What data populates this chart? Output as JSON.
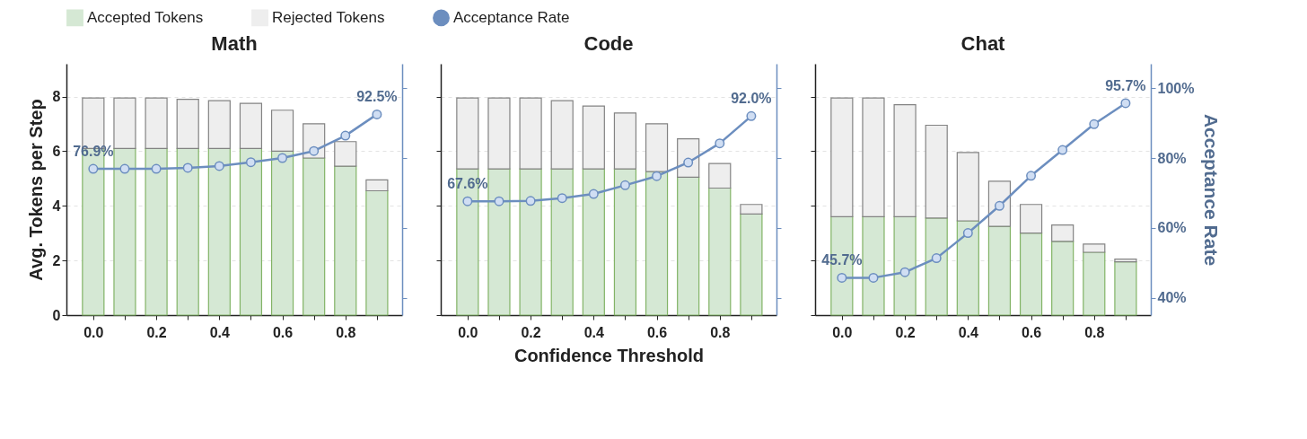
{
  "chart_data": [
    {
      "type": "bar",
      "title": "Math",
      "ylabel": "Avg. Tokens per Step",
      "stacked": true,
      "legend": "top",
      "grid": "y",
      "marker": "circle",
      "line_style": "solid",
      "x": [
        0.0,
        0.1,
        0.2,
        0.3,
        0.4,
        0.5,
        0.6,
        0.7,
        0.8,
        0.9
      ],
      "xlim": [
        -0.085,
        0.98
      ],
      "xticks": [
        {
          "value": 0,
          "label": "0.0"
        },
        {
          "value": 0.1,
          "label": null
        },
        {
          "value": 0.2,
          "label": "0.2"
        },
        {
          "value": 0.3,
          "label": null
        },
        {
          "value": 0.4,
          "label": "0.4"
        },
        {
          "value": 0.5,
          "label": null
        },
        {
          "value": 0.6,
          "label": "0.6"
        },
        {
          "value": 0.7,
          "label": null
        },
        {
          "value": 0.8,
          "label": "0.8"
        },
        {
          "value": 0.9,
          "label": null
        }
      ],
      "ylim": [
        0,
        9.2
      ],
      "yticks": [
        0,
        2,
        4,
        6,
        8
      ],
      "y2lim": [
        35,
        107
      ],
      "y2ticks": [
        {
          "value": 40,
          "label": null
        },
        {
          "value": 60,
          "label": null
        },
        {
          "value": 80,
          "label": null
        },
        {
          "value": 100,
          "label": null
        }
      ],
      "series": [
        {
          "name": "Accepted Tokens",
          "color": "#d5e8d4",
          "values": [
            6.1,
            6.1,
            6.1,
            6.1,
            6.1,
            6.1,
            6.0,
            5.75,
            5.45,
            4.55
          ]
        },
        {
          "name": "Rejected Tokens",
          "color": "#eeeeee",
          "values": [
            1.85,
            1.85,
            1.85,
            1.8,
            1.75,
            1.65,
            1.5,
            1.25,
            0.9,
            0.4
          ]
        },
        {
          "name": "Acceptance Rate",
          "type": "line",
          "axis": "y2",
          "color": "#6c8ebf",
          "values": [
            76.9,
            76.9,
            76.9,
            77.2,
            77.7,
            78.8,
            80.0,
            82.0,
            86.4,
            92.5
          ],
          "value_labels": [
            "76.9%",
            null,
            null,
            null,
            null,
            null,
            null,
            null,
            null,
            "92.5%"
          ]
        }
      ]
    },
    {
      "type": "bar",
      "title": "Code",
      "xlabel": "Confidence Threshold",
      "stacked": true,
      "grid": "y",
      "marker": "circle",
      "line_style": "solid",
      "tick_labels": "x",
      "x": [
        0.0,
        0.1,
        0.2,
        0.3,
        0.4,
        0.5,
        0.6,
        0.7,
        0.8,
        0.9
      ],
      "xlim": [
        -0.085,
        0.98
      ],
      "xticks": [
        {
          "value": 0,
          "label": "0.0"
        },
        {
          "value": 0.1,
          "label": null
        },
        {
          "value": 0.2,
          "label": "0.2"
        },
        {
          "value": 0.3,
          "label": null
        },
        {
          "value": 0.4,
          "label": "0.4"
        },
        {
          "value": 0.5,
          "label": null
        },
        {
          "value": 0.6,
          "label": "0.6"
        },
        {
          "value": 0.7,
          "label": null
        },
        {
          "value": 0.8,
          "label": "0.8"
        },
        {
          "value": 0.9,
          "label": null
        }
      ],
      "ylim": [
        0,
        9.2
      ],
      "yticks": [
        0,
        2,
        4,
        6,
        8
      ],
      "y2lim": [
        35,
        107
      ],
      "y2ticks": [
        {
          "value": 40,
          "label": null
        },
        {
          "value": 60,
          "label": null
        },
        {
          "value": 80,
          "label": null
        },
        {
          "value": 100,
          "label": null
        }
      ],
      "series": [
        {
          "color": "#d5e8d4",
          "values": [
            5.35,
            5.35,
            5.35,
            5.35,
            5.35,
            5.35,
            5.25,
            5.05,
            4.65,
            3.7
          ]
        },
        {
          "color": "#eeeeee",
          "values": [
            2.6,
            2.6,
            2.6,
            2.5,
            2.3,
            2.05,
            1.75,
            1.4,
            0.9,
            0.35
          ]
        },
        {
          "type": "line",
          "axis": "y2",
          "color": "#6c8ebf",
          "values": [
            67.6,
            67.6,
            67.7,
            68.5,
            69.7,
            72.2,
            74.8,
            78.7,
            84.2,
            92.0
          ],
          "value_labels": [
            "67.6%",
            null,
            null,
            null,
            null,
            null,
            null,
            null,
            null,
            "92.0%"
          ]
        }
      ]
    },
    {
      "type": "bar",
      "title": "Chat",
      "y2label": "Acceptance Rate",
      "stacked": true,
      "grid": "y",
      "marker": "circle",
      "line_style": "solid",
      "tick_labels": "x",
      "x": [
        0.0,
        0.1,
        0.2,
        0.3,
        0.4,
        0.5,
        0.6,
        0.7,
        0.8,
        0.9
      ],
      "xlim": [
        -0.085,
        0.98
      ],
      "xticks": [
        {
          "value": 0,
          "label": "0.0"
        },
        {
          "value": 0.1,
          "label": null
        },
        {
          "value": 0.2,
          "label": "0.2"
        },
        {
          "value": 0.3,
          "label": null
        },
        {
          "value": 0.4,
          "label": "0.4"
        },
        {
          "value": 0.5,
          "label": null
        },
        {
          "value": 0.6,
          "label": "0.6"
        },
        {
          "value": 0.7,
          "label": null
        },
        {
          "value": 0.8,
          "label": "0.8"
        },
        {
          "value": 0.9,
          "label": null
        }
      ],
      "ylim": [
        0,
        9.2
      ],
      "yticks": [
        0,
        2,
        4,
        6,
        8
      ],
      "y2lim": [
        35,
        107
      ],
      "y2ticks": [
        {
          "value": 40,
          "label": "40%"
        },
        {
          "value": 60,
          "label": "60%"
        },
        {
          "value": 80,
          "label": "80%"
        },
        {
          "value": 100,
          "label": "100%"
        }
      ],
      "series": [
        {
          "color": "#d5e8d4",
          "values": [
            3.6,
            3.6,
            3.6,
            3.55,
            3.45,
            3.25,
            3.0,
            2.7,
            2.3,
            1.95
          ]
        },
        {
          "color": "#eeeeee",
          "values": [
            4.35,
            4.35,
            4.1,
            3.4,
            2.5,
            1.65,
            1.05,
            0.6,
            0.3,
            0.1
          ]
        },
        {
          "type": "line",
          "axis": "y2",
          "color": "#6c8ebf",
          "values": [
            45.7,
            45.7,
            47.3,
            51.3,
            58.5,
            66.3,
            74.9,
            82.3,
            89.7,
            95.7
          ],
          "value_labels": [
            "45.7%",
            null,
            null,
            null,
            null,
            null,
            null,
            null,
            null,
            "95.7%"
          ]
        }
      ]
    }
  ]
}
